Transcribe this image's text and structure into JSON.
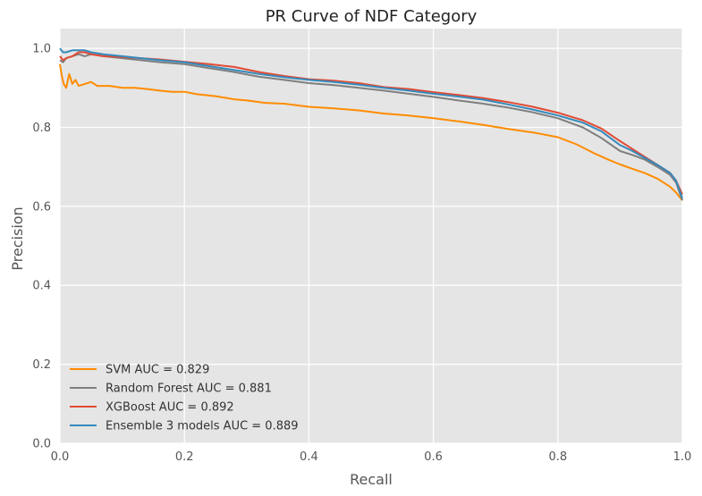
{
  "chart_data": {
    "type": "line",
    "title": "PR Curve of NDF Category",
    "xlabel": "Recall",
    "ylabel": "Precision",
    "xlim": [
      0.0,
      1.0
    ],
    "ylim": [
      0.0,
      1.05
    ],
    "xticks": [
      "0.0",
      "0.2",
      "0.4",
      "0.6",
      "0.8",
      "1.0"
    ],
    "yticks": [
      "0.0",
      "0.2",
      "0.4",
      "0.6",
      "0.8",
      "1.0"
    ],
    "grid": true,
    "legend_position": "lower-left",
    "background": "#e5e5e5",
    "series": [
      {
        "name": "SVM AUC = 0.829",
        "color": "#ff8c00",
        "x": [
          0.0,
          0.003,
          0.006,
          0.01,
          0.015,
          0.02,
          0.025,
          0.03,
          0.04,
          0.05,
          0.06,
          0.08,
          0.1,
          0.12,
          0.14,
          0.16,
          0.18,
          0.2,
          0.22,
          0.25,
          0.28,
          0.3,
          0.33,
          0.36,
          0.4,
          0.44,
          0.48,
          0.52,
          0.56,
          0.6,
          0.64,
          0.68,
          0.72,
          0.76,
          0.8,
          0.83,
          0.86,
          0.88,
          0.9,
          0.92,
          0.94,
          0.96,
          0.98,
          0.99,
          1.0
        ],
        "y": [
          0.96,
          0.93,
          0.91,
          0.9,
          0.935,
          0.91,
          0.92,
          0.905,
          0.91,
          0.915,
          0.905,
          0.905,
          0.9,
          0.9,
          0.897,
          0.893,
          0.89,
          0.89,
          0.884,
          0.879,
          0.871,
          0.868,
          0.862,
          0.86,
          0.852,
          0.848,
          0.843,
          0.835,
          0.83,
          0.823,
          0.815,
          0.806,
          0.796,
          0.787,
          0.775,
          0.757,
          0.733,
          0.719,
          0.706,
          0.695,
          0.684,
          0.67,
          0.65,
          0.635,
          0.615
        ]
      },
      {
        "name": "Random Forest AUC = 0.881",
        "color": "#7f7f7f",
        "x": [
          0.0,
          0.005,
          0.01,
          0.02,
          0.03,
          0.04,
          0.05,
          0.07,
          0.1,
          0.13,
          0.16,
          0.2,
          0.24,
          0.28,
          0.32,
          0.36,
          0.4,
          0.44,
          0.48,
          0.52,
          0.56,
          0.6,
          0.64,
          0.68,
          0.72,
          0.76,
          0.8,
          0.84,
          0.87,
          0.9,
          0.92,
          0.94,
          0.96,
          0.98,
          0.99,
          1.0
        ],
        "y": [
          0.97,
          0.965,
          0.975,
          0.98,
          0.985,
          0.98,
          0.985,
          0.98,
          0.975,
          0.97,
          0.965,
          0.96,
          0.95,
          0.94,
          0.928,
          0.92,
          0.912,
          0.907,
          0.9,
          0.893,
          0.885,
          0.877,
          0.868,
          0.86,
          0.85,
          0.838,
          0.823,
          0.8,
          0.773,
          0.74,
          0.73,
          0.718,
          0.7,
          0.68,
          0.66,
          0.615
        ]
      },
      {
        "name": "XGBoost AUC = 0.892",
        "color": "#e24a33",
        "x": [
          0.0,
          0.005,
          0.01,
          0.02,
          0.03,
          0.04,
          0.05,
          0.07,
          0.1,
          0.13,
          0.16,
          0.2,
          0.24,
          0.28,
          0.32,
          0.36,
          0.4,
          0.44,
          0.48,
          0.52,
          0.56,
          0.6,
          0.64,
          0.68,
          0.72,
          0.76,
          0.8,
          0.84,
          0.87,
          0.9,
          0.92,
          0.94,
          0.96,
          0.98,
          0.99,
          1.0
        ],
        "y": [
          0.98,
          0.97,
          0.975,
          0.98,
          0.99,
          0.99,
          0.985,
          0.98,
          0.978,
          0.975,
          0.972,
          0.966,
          0.96,
          0.953,
          0.94,
          0.93,
          0.922,
          0.918,
          0.912,
          0.902,
          0.897,
          0.889,
          0.882,
          0.874,
          0.864,
          0.852,
          0.837,
          0.818,
          0.797,
          0.765,
          0.745,
          0.725,
          0.705,
          0.685,
          0.665,
          0.63
        ]
      },
      {
        "name": "Ensemble 3 models AUC = 0.889",
        "color": "#348abd",
        "x": [
          0.0,
          0.005,
          0.01,
          0.02,
          0.03,
          0.04,
          0.05,
          0.07,
          0.1,
          0.13,
          0.16,
          0.2,
          0.24,
          0.28,
          0.32,
          0.36,
          0.4,
          0.44,
          0.48,
          0.52,
          0.56,
          0.6,
          0.64,
          0.68,
          0.72,
          0.76,
          0.8,
          0.84,
          0.87,
          0.9,
          0.92,
          0.94,
          0.96,
          0.98,
          0.99,
          1.0
        ],
        "y": [
          1.0,
          0.99,
          0.99,
          0.995,
          0.995,
          0.995,
          0.99,
          0.985,
          0.98,
          0.975,
          0.97,
          0.965,
          0.955,
          0.945,
          0.935,
          0.927,
          0.92,
          0.915,
          0.908,
          0.9,
          0.893,
          0.885,
          0.878,
          0.87,
          0.858,
          0.845,
          0.83,
          0.812,
          0.79,
          0.755,
          0.74,
          0.722,
          0.705,
          0.685,
          0.665,
          0.62
        ]
      }
    ]
  }
}
